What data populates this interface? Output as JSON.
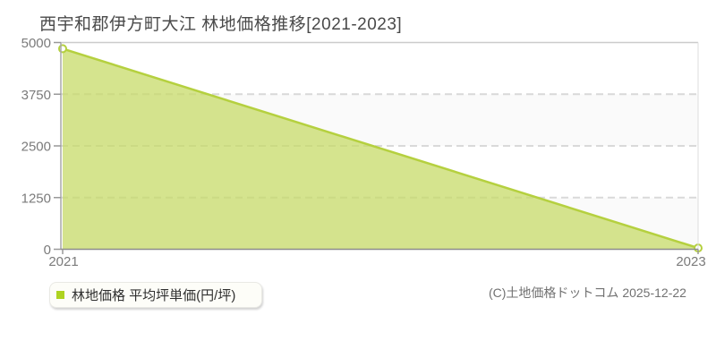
{
  "title": "西宇和郡伊方町大江 林地価格推移[2021-2023]",
  "legend": {
    "label": "林地価格 平均坪単価(円/坪)",
    "marker_color": "#aed31f"
  },
  "copyright": "(C)土地価格ドットコム 2025-12-22",
  "chart_data": {
    "type": "area",
    "title": "西宇和郡伊方町大江 林地価格推移[2021-2023]",
    "series": [
      {
        "name": "林地価格 平均坪単価(円/坪)",
        "x": [
          2021,
          2023
        ],
        "values": [
          4850,
          30
        ]
      }
    ],
    "xlabel": "",
    "ylabel": "平均坪単価(円/坪)",
    "xlim": [
      2021,
      2023
    ],
    "ylim": [
      0,
      5000
    ],
    "x_tick_labels": [
      "2021",
      "2023"
    ],
    "y_tick_labels": [
      "0",
      "1250",
      "2500",
      "3750",
      "5000"
    ],
    "y_tick_values": [
      0,
      1250,
      2500,
      3750,
      5000
    ],
    "grid": "horizontal-dashed",
    "legend_position": "bottom-left",
    "colors": {
      "area_fill": "#c5da62",
      "area_fill_opacity": 0.72,
      "line": "#b5d03f",
      "marker_fill": "#ffffff",
      "marker_stroke": "#b5d03f",
      "grid_line": "#d9d9d9",
      "band_alt": "#fafafa",
      "axis": "#8c8c8c"
    }
  }
}
